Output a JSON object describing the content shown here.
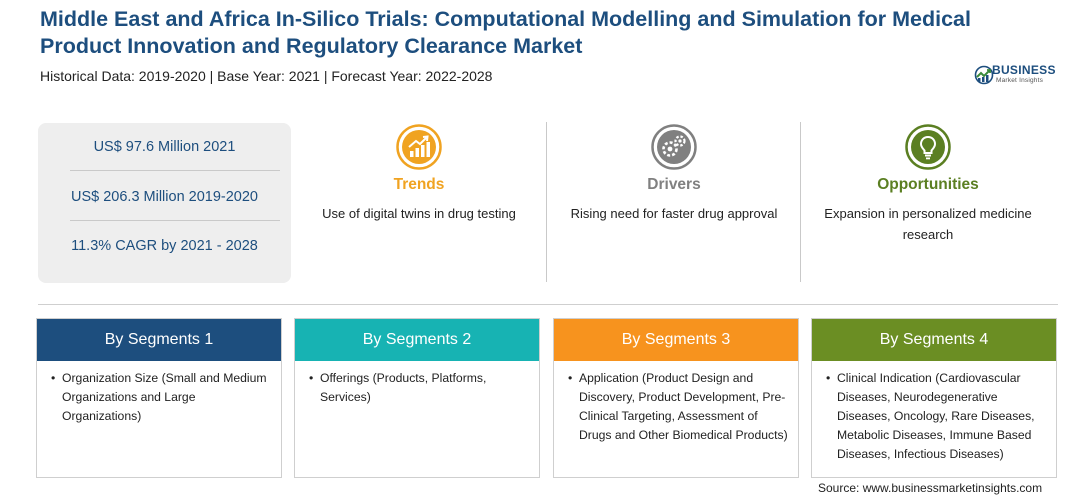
{
  "header": {
    "title": "Middle East and Africa In-Silico Trials: Computational Modelling and Simulation for Medical Product Innovation and Regulatory Clearance Market",
    "subtitle": "Historical Data: 2019-2020 | Base Year: 2021 | Forecast Year: 2022-2028"
  },
  "logo": {
    "line1": "BUSINESS",
    "line2": "Market Insights",
    "icon": "globe-icon"
  },
  "stats": [
    "US$ 97.6 Million 2021",
    "US$ 206.3 Million 2019-2020",
    "11.3% CAGR by 2021 - 2028"
  ],
  "columns": [
    {
      "title": "Trends",
      "desc": "Use of digital twins in drug testing",
      "color": "#f0a321",
      "icon": "trend-chart-icon"
    },
    {
      "title": "Drivers",
      "desc": "Rising need for faster drug approval",
      "color": "#808080",
      "icon": "gears-icon"
    },
    {
      "title": "Opportunities",
      "desc": "Expansion in personalized medicine research",
      "color": "#5b7f22",
      "icon": "lightbulb-icon"
    }
  ],
  "segments": [
    {
      "title": "By Segments 1",
      "color": "#1d4e7e",
      "items": [
        "Organization Size (Small and Medium Organizations and Large Organizations)"
      ]
    },
    {
      "title": "By Segments 2",
      "color": "#17b3b3",
      "items": [
        "Offerings (Products, Platforms, Services)"
      ]
    },
    {
      "title": "By Segments 3",
      "color": "#f7931e",
      "items": [
        "Application (Product Design and Discovery, Product Development, Pre-Clinical Targeting, Assessment of Drugs and Other Biomedical Products)"
      ]
    },
    {
      "title": "By Segments 4",
      "color": "#6b8e23",
      "items": [
        "Clinical Indication (Cardiovascular Diseases, Neurodegenerative Diseases, Oncology, Rare Diseases, Metabolic Diseases, Immune Based Diseases, Infectious Diseases)"
      ]
    }
  ],
  "source": "Source: www.businessmarketinsights.com"
}
